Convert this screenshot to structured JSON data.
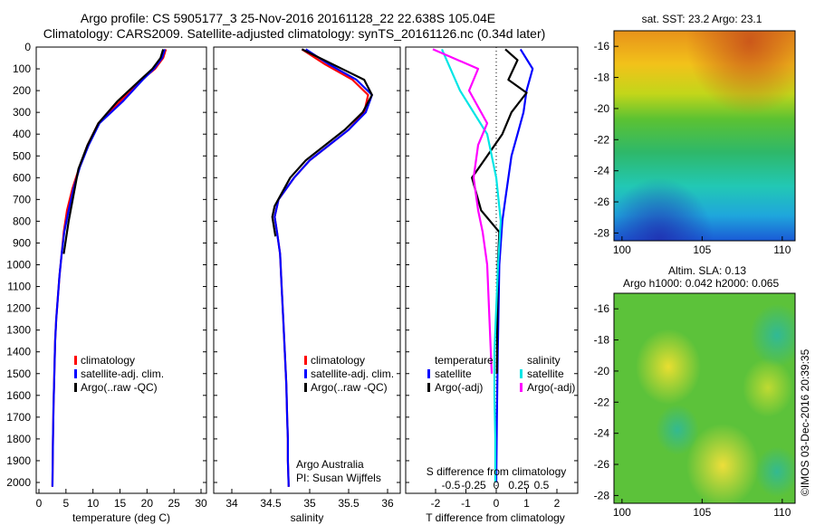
{
  "header": {
    "line1": "Argo profile: CS 5905177_3 25-Nov-2016 20161128_22 22.638S 105.04E",
    "line2": "Climatology: CARS2009. Satellite-adjusted climatology: synTS_20161126.nc (0.34d later)"
  },
  "depth_ticks": [
    "0",
    "100",
    "200",
    "300",
    "400",
    "500",
    "600",
    "700",
    "800",
    "900",
    "1000",
    "1100",
    "1200",
    "1300",
    "1400",
    "1500",
    "1600",
    "1700",
    "1800",
    "1900",
    "2000"
  ],
  "panels": {
    "temperature": {
      "xlabel": "temperature (deg C)",
      "xticks": [
        "0",
        "5",
        "10",
        "15",
        "20",
        "25",
        "30"
      ],
      "legend": [
        "climatology",
        "satellite-adj. clim.",
        "Argo(..raw -QC)"
      ]
    },
    "salinity": {
      "xlabel": "salinity",
      "xticks": [
        "34",
        "34.5",
        "35",
        "35.5",
        "36"
      ],
      "legend": [
        "climatology",
        "satellite-adj. clim.",
        "Argo(..raw -QC)"
      ],
      "credit1": "Argo Australia",
      "credit2": "PI: Susan Wijffels"
    },
    "difference": {
      "top_label": "S difference from climatology",
      "top_ticks": [
        "-0.5",
        "-0.25",
        "0",
        "0.25",
        "0.5"
      ],
      "xlabel": "T difference from climatology",
      "xticks": [
        "-2",
        "-1",
        "0",
        "1",
        "2"
      ],
      "legend_t_title": "temperature",
      "legend_s_title": "salinity",
      "legend_t": [
        "satellite",
        "Argo(-adj)"
      ],
      "legend_s": [
        "satellite",
        "Argo(-adj)"
      ]
    }
  },
  "maps": {
    "sst_title": "sat. SST: 23.2  Argo: 23.1",
    "sla_title1": "Altim. SLA: 0.13",
    "sla_title2": "Argo h1000: 0.042 h2000: 0.065",
    "yticks": [
      "-16",
      "-18",
      "-20",
      "-22",
      "-24",
      "-26",
      "-28"
    ],
    "xticks": [
      "100",
      "105",
      "110"
    ]
  },
  "stamp": "©IMOS 03-Dec-2016 20:39:35",
  "colors": {
    "climatology": "#ff0000",
    "satellite": "#0000ff",
    "argo": "#000000",
    "sal_satellite": "#00e5e5",
    "sal_argo": "#ff00ff"
  },
  "chart_data": [
    {
      "type": "line",
      "title": "",
      "xlabel": "temperature (deg C)",
      "ylabel": "",
      "xlim": [
        -3,
        32
      ],
      "ylim": [
        2050,
        0
      ],
      "series": [
        {
          "name": "climatology",
          "x": [
            23.5,
            23.0,
            21.5,
            19.0,
            15.0,
            11.0,
            9.0,
            7.5,
            6.2,
            5.2,
            4.6,
            4.2,
            3.8,
            3.5,
            3.2,
            3.0,
            2.9,
            2.8,
            2.7,
            2.6,
            2.5
          ],
          "y": [
            10,
            50,
            100,
            150,
            250,
            350,
            450,
            550,
            650,
            750,
            850,
            950,
            1050,
            1150,
            1250,
            1350,
            1450,
            1550,
            1650,
            1800,
            2020
          ]
        },
        {
          "name": "satellite-adj. clim.",
          "x": [
            23.3,
            22.8,
            21.3,
            19.2,
            15.5,
            11.2,
            9.2,
            7.6,
            6.4,
            5.5,
            4.7,
            4.2,
            3.8,
            3.5,
            3.2,
            3.0,
            2.9,
            2.8,
            2.7,
            2.6,
            2.5
          ],
          "y": [
            10,
            50,
            100,
            150,
            250,
            350,
            450,
            550,
            650,
            750,
            850,
            950,
            1050,
            1150,
            1250,
            1350,
            1450,
            1550,
            1650,
            1800,
            2020
          ]
        },
        {
          "name": "Argo(..raw -QC)",
          "x": [
            23.0,
            22.5,
            21.0,
            18.8,
            14.5,
            11.0,
            9.0,
            7.3,
            6.4,
            5.8,
            5.5,
            4.6
          ],
          "y": [
            10,
            50,
            100,
            150,
            250,
            350,
            450,
            560,
            680,
            760,
            800,
            950
          ]
        }
      ]
    },
    {
      "type": "line",
      "title": "",
      "xlabel": "salinity",
      "ylabel": "",
      "xlim": [
        33.75,
        36.25
      ],
      "ylim": [
        2050,
        0
      ],
      "series": [
        {
          "name": "climatology",
          "x": [
            34.9,
            35.2,
            35.55,
            35.75,
            35.7,
            35.5,
            35.25,
            35.0,
            34.8,
            34.6,
            34.55,
            34.58,
            34.62,
            34.64,
            34.66,
            34.68,
            34.7,
            34.71,
            34.72,
            34.72,
            34.73
          ],
          "y": [
            10,
            80,
            150,
            220,
            300,
            380,
            450,
            520,
            600,
            700,
            780,
            850,
            950,
            1100,
            1250,
            1400,
            1550,
            1700,
            1800,
            1900,
            2020
          ]
        },
        {
          "name": "satellite-adj. clim.",
          "x": [
            34.95,
            35.25,
            35.6,
            35.8,
            35.72,
            35.5,
            35.25,
            35.0,
            34.8,
            34.6,
            34.55,
            34.58,
            34.62,
            34.64,
            34.66,
            34.68,
            34.7,
            34.71,
            34.72,
            34.72,
            34.73
          ],
          "y": [
            10,
            80,
            150,
            220,
            300,
            380,
            450,
            520,
            600,
            700,
            780,
            850,
            950,
            1100,
            1250,
            1400,
            1550,
            1700,
            1800,
            1900,
            2020
          ]
        },
        {
          "name": "Argo(..raw -QC)",
          "x": [
            34.9,
            35.3,
            35.7,
            35.8,
            35.68,
            35.45,
            35.2,
            34.95,
            34.75,
            34.55,
            34.52,
            34.56
          ],
          "y": [
            10,
            80,
            150,
            220,
            300,
            380,
            450,
            520,
            600,
            730,
            780,
            870
          ]
        }
      ]
    },
    {
      "type": "line",
      "title": "",
      "xlabel": "T difference from climatology",
      "ylabel": "S difference from climatology",
      "xlim": [
        -2.6,
        2.8
      ],
      "ylim": [
        2050,
        0
      ],
      "series": [
        {
          "name": "satellite",
          "x": [
            0.8,
            1.2,
            1.0,
            0.9,
            0.7,
            0.5,
            0.4,
            0.3,
            0.2,
            0.1,
            0.05,
            0.02,
            0.0
          ],
          "y": [
            10,
            100,
            200,
            300,
            400,
            500,
            600,
            700,
            800,
            1000,
            1400,
            1700,
            2000
          ]
        },
        {
          "name": "Argo(-adj)",
          "x": [
            0.3,
            0.7,
            0.4,
            1.0,
            0.5,
            0.2,
            -0.3,
            -0.8,
            -0.5,
            0.1,
            0.05,
            0.02
          ],
          "y": [
            10,
            60,
            150,
            210,
            300,
            400,
            500,
            600,
            750,
            850,
            1000,
            1500
          ]
        },
        {
          "name": "satellite",
          "x": [
            -0.6,
            -0.4,
            -0.1,
            0.0,
            0.05,
            0.02,
            0.0,
            -0.02,
            -0.02,
            -0.01,
            -0.01
          ],
          "y": [
            10,
            200,
            400,
            600,
            800,
            1000,
            1200,
            1400,
            1600,
            1800,
            2000
          ]
        },
        {
          "name": "Argo(-adj)",
          "x": [
            -0.7,
            -0.2,
            -0.3,
            -0.1,
            -0.2,
            -0.25,
            -0.2,
            -0.15,
            -0.1,
            -0.05
          ],
          "y": [
            10,
            100,
            200,
            350,
            450,
            600,
            750,
            850,
            1000,
            1500
          ]
        }
      ]
    }
  ]
}
